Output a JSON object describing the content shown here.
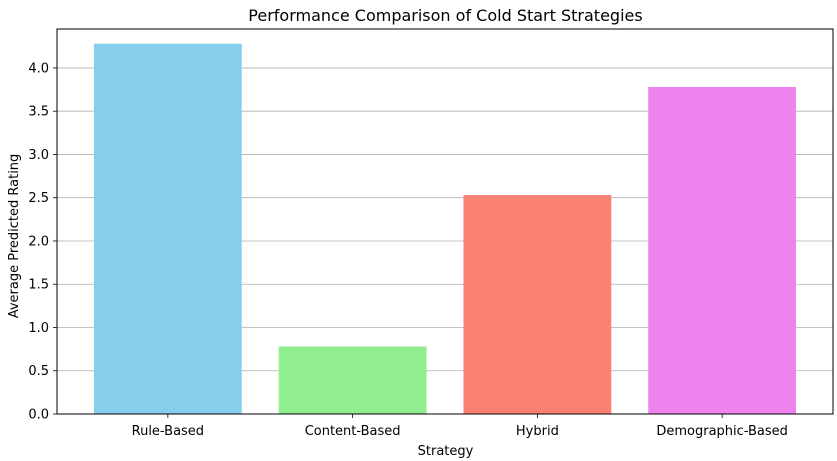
{
  "chart_data": {
    "type": "bar",
    "title": "Performance Comparison of Cold Start Strategies",
    "xlabel": "Strategy",
    "ylabel": "Average Predicted Rating",
    "categories": [
      "Rule-Based",
      "Content-Based",
      "Hybrid",
      "Demographic-Based"
    ],
    "values": [
      4.28,
      0.78,
      2.53,
      3.78
    ],
    "colors": [
      "#87ceeb",
      "#90ee90",
      "#fa8072",
      "#ee82ee"
    ],
    "ylim": [
      0,
      4.45
    ],
    "yticks": [
      "0.0",
      "0.5",
      "1.0",
      "1.5",
      "2.0",
      "2.5",
      "3.0",
      "3.5",
      "4.0"
    ],
    "grid": "y-major",
    "grid_color": "#b0b0b0"
  }
}
